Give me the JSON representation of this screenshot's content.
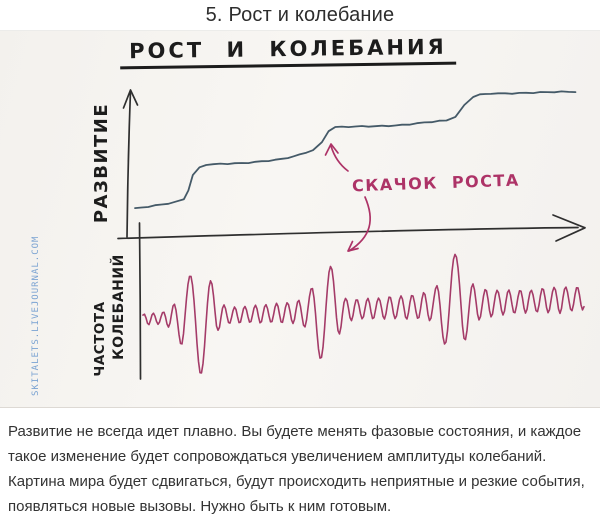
{
  "page": {
    "title": "5. Рост и колебание"
  },
  "photo": {
    "watermark": "SKITALETS.LIVEJOURNAL.COM",
    "sketch_title": "РОСТ И КОЛЕБАНИЯ"
  },
  "caption": {
    "text": "Развитие не всегда идет плавно. Вы будете менять фазовые состояния, и каждое такое изменение будет сопровождаться увеличением амплитуды колебаний. Картина мира будет сдвигаться, будут происходить неприятные и резкие события, появляться новые вызовы. Нужно быть к ним готовым."
  },
  "colors": {
    "growth_line": "#455a68",
    "accent_pink": "#ad3367",
    "ink": "#2f2f2f",
    "watermark_blue": "#7ba3d2",
    "paper": "#f5f3ef",
    "body_text": "#333333"
  },
  "chart_data": {
    "type": "line",
    "title": "РОСТ И КОЛЕБАНИЯ",
    "grid": false,
    "legend": false,
    "x_range": [
      0,
      100
    ],
    "panels": [
      {
        "name": "growth-panel",
        "ylabel": "РАЗВИТИЕ",
        "annotation": "СКАЧОК РОСТА",
        "annotation_points_to": "second growth step",
        "y_range": [
          0,
          100
        ],
        "series": [
          {
            "name": "развитие",
            "color": "#455a68",
            "shape": "stepwise growth with three jumps",
            "points": [
              [
                0,
                19
              ],
              [
                9,
                23
              ],
              [
                11,
                25
              ],
              [
                12,
                31
              ],
              [
                13,
                41
              ],
              [
                14.5,
                46
              ],
              [
                16,
                48
              ],
              [
                24,
                49.5
              ],
              [
                33,
                52.5
              ],
              [
                37,
                55
              ],
              [
                40,
                58
              ],
              [
                42,
                63
              ],
              [
                43.5,
                71
              ],
              [
                45,
                73.5
              ],
              [
                51,
                74.5
              ],
              [
                60,
                75.5
              ],
              [
                70,
                78
              ],
              [
                72,
                80.5
              ],
              [
                74,
                88.5
              ],
              [
                76,
                94.5
              ],
              [
                77.5,
                96
              ],
              [
                80,
                97
              ],
              [
                99,
                97.5
              ]
            ]
          }
        ]
      },
      {
        "name": "oscillation-panel",
        "ylabel": "ЧАСТОТА КОЛЕБАНИЙ",
        "ylabel_lines": [
          "ЧАСТОТА",
          "КОЛЕБАНИЙ"
        ],
        "series": [
          {
            "name": "частота колебаний",
            "color": "#a43b68",
            "shape": "oscillation around baseline with amplitude bursts at each growth jump",
            "bursts_at_x": [
              13,
              42,
              70
            ],
            "amplitude_envelope": [
              [
                0,
                0.9
              ],
              [
                4,
                1.1
              ],
              [
                6,
                1.6
              ],
              [
                8,
                3.5
              ],
              [
                9,
                5.5
              ],
              [
                11,
                8.5
              ],
              [
                13,
                10
              ],
              [
                15,
                8
              ],
              [
                17,
                2.5
              ],
              [
                20,
                1.4
              ],
              [
                26,
                1.6
              ],
              [
                32,
                1.8
              ],
              [
                36,
                2.2
              ],
              [
                38,
                4
              ],
              [
                40,
                8
              ],
              [
                42,
                10
              ],
              [
                44,
                5
              ],
              [
                46,
                2
              ],
              [
                50,
                1.8
              ],
              [
                56,
                2
              ],
              [
                62,
                2.2
              ],
              [
                66,
                2.8
              ],
              [
                68,
                6
              ],
              [
                70,
                10
              ],
              [
                72,
                9
              ],
              [
                74,
                4
              ],
              [
                77,
                2.6
              ],
              [
                82,
                2.2
              ],
              [
                88,
                2
              ],
              [
                94,
                2.4
              ],
              [
                100,
                2
              ]
            ]
          }
        ]
      }
    ]
  }
}
